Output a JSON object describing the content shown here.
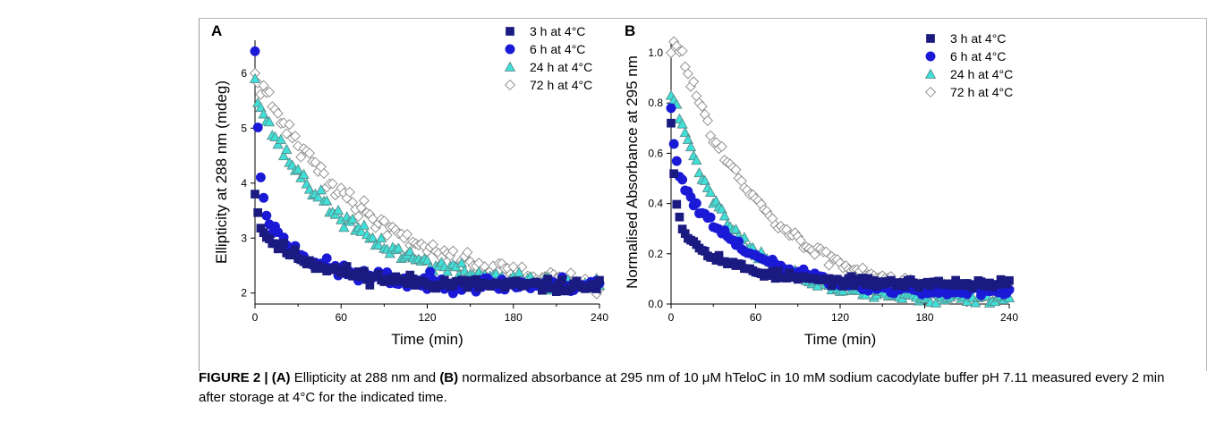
{
  "caption": {
    "figure_label": "FIGURE 2 | ",
    "part_a_label": "(A)",
    "text1": " Ellipticity at 288 nm and ",
    "part_b_label": "(B)",
    "text2": " normalized absorbance at 295 nm of 10 μM hTeloC in 10 mM sodium cacodylate buffer pH 7.11 measured every 2 min after storage at 4°C for the indicated time."
  },
  "legend_labels": [
    "3 h at 4°C",
    "6 h at 4°C",
    "24 h at 4°C",
    "72 h at 4°C"
  ],
  "series_styles": [
    {
      "marker": "square",
      "fill": "#1a1a80",
      "stroke": "#1a1a80"
    },
    {
      "marker": "circle",
      "fill": "#1a1ad6",
      "stroke": "#1a1ad6"
    },
    {
      "marker": "triangle",
      "fill": "#40e0d8",
      "stroke": "#5a8c8c"
    },
    {
      "marker": "diamond",
      "fill": "#ffffff",
      "stroke": "#888888"
    }
  ],
  "chart_data": [
    {
      "panel": "A",
      "type": "scatter",
      "xlabel": "Time (min)",
      "ylabel": "Ellipticity at 288 nm (mdeg)",
      "xlim": [
        0,
        240
      ],
      "ylim": [
        1.8,
        6.6
      ],
      "xticks": [
        0,
        60,
        120,
        180,
        240
      ],
      "yticks": [
        2,
        3,
        4,
        5,
        6
      ],
      "legend": "top-right",
      "series": [
        {
          "name": "3 h at 4°C",
          "model": {
            "y0": 3.8,
            "a": 1.05,
            "tau": 45,
            "c": 2.12,
            "noise": 0.08,
            "start": 0,
            "seed": 11
          }
        },
        {
          "name": "6 h at 4°C",
          "model": {
            "y0": 6.4,
            "a": 1.4,
            "tau": 35,
            "c": 2.15,
            "noise": 0.1,
            "start": 0,
            "seed": 23
          }
        },
        {
          "name": "24 h at 4°C",
          "model": {
            "y0": 5.9,
            "a": 3.5,
            "tau": 62,
            "c": 2.05,
            "noise": 0.1,
            "start": 0,
            "seed": 37
          }
        },
        {
          "name": "72 h at 4°C",
          "model": {
            "y0": 6.0,
            "a": 4.0,
            "tau": 80,
            "c": 1.95,
            "noise": 0.12,
            "start": 0,
            "seed": 41
          }
        }
      ]
    },
    {
      "panel": "B",
      "type": "scatter",
      "xlabel": "Time (min)",
      "ylabel": "Normalised  Absorbance at 295 nm",
      "xlim": [
        0,
        240
      ],
      "ylim": [
        0,
        1.05
      ],
      "xticks": [
        0,
        60,
        120,
        180,
        240
      ],
      "yticks": [
        0.0,
        0.2,
        0.4,
        0.6,
        0.8,
        1.0
      ],
      "legend": "top-right",
      "series": [
        {
          "name": "3 h at 4°C",
          "model": {
            "y0": 0.72,
            "a": 0.25,
            "tau": 38,
            "c": 0.08,
            "noise": 0.012,
            "start": 0,
            "seed": 53
          }
        },
        {
          "name": "6 h at 4°C",
          "model": {
            "y0": 0.78,
            "a": 0.5,
            "tau": 50,
            "c": 0.04,
            "noise": 0.015,
            "start": 0,
            "seed": 61
          }
        },
        {
          "name": "24 h at 4°C",
          "model": {
            "y0": 0.83,
            "a": 0.85,
            "tau": 40,
            "c": 0.02,
            "noise": 0.015,
            "start": 0,
            "seed": 71
          }
        },
        {
          "name": "72 h at 4°C",
          "model": {
            "y0": 1.0,
            "a": 1.1,
            "tau": 55,
            "c": 0.04,
            "noise": 0.018,
            "start": 0,
            "seed": 83
          }
        }
      ]
    }
  ]
}
